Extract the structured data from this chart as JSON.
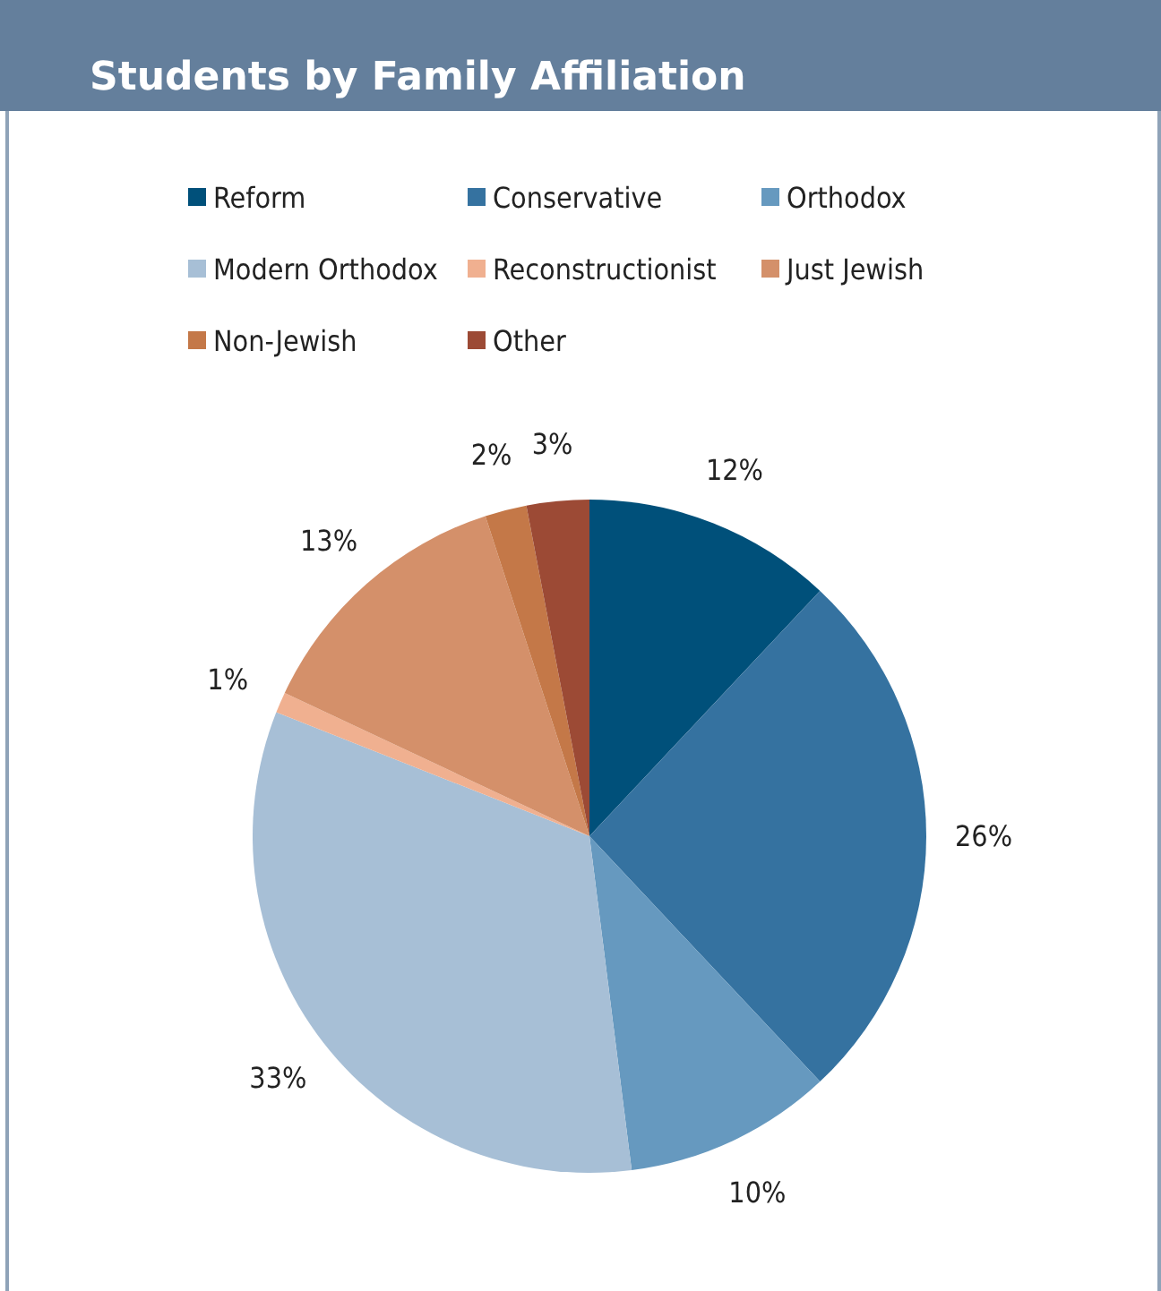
{
  "chart_data": {
    "type": "pie",
    "title": "Students by Family Affiliation",
    "categories": [
      "Reform",
      "Conservative",
      "Orthodox",
      "Modern Orthodox",
      "Reconstructionist",
      "Just Jewish",
      "Non-Jewish",
      "Other"
    ],
    "values": [
      12,
      26,
      10,
      33,
      1,
      13,
      2,
      3
    ],
    "value_labels": [
      "12%",
      "26%",
      "10%",
      "33%",
      "1%",
      "13%",
      "2%",
      "3%"
    ],
    "colors": [
      "#00507a",
      "#3572a0",
      "#6699bf",
      "#a7bfd6",
      "#f0b090",
      "#d4906a",
      "#c47848",
      "#9c4a35"
    ],
    "legend": "top"
  }
}
